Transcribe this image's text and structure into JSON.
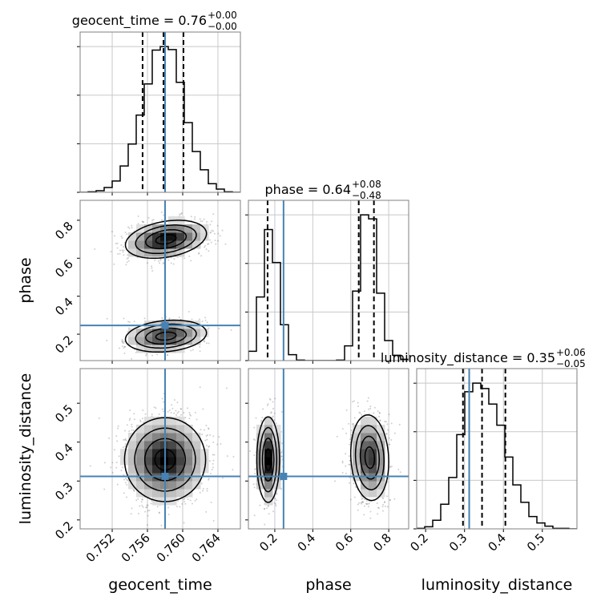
{
  "chart_data": {
    "type": "corner",
    "truth_color": "#4682b4",
    "contour_levels_sigma": [
      0.5,
      1,
      1.5,
      2
    ],
    "parameters": [
      {
        "name": "geocent_time",
        "label": "geocent_time",
        "range": [
          0.74836,
          0.76655
        ],
        "ticks": [
          0.752,
          0.756,
          0.76,
          0.764
        ],
        "tick_labels": [
          "0.752",
          "0.756",
          "0.760",
          "0.764"
        ],
        "truth": 0.758,
        "quantiles": [
          0.75545,
          0.75782,
          0.76009
        ],
        "hist_values": [
          0,
          2,
          6,
          18,
          42,
          98,
          180,
          288,
          404,
          530,
          543,
          532,
          410,
          260,
          152,
          84,
          32,
          12,
          2,
          0
        ],
        "title": {
          "text": "geocent_time = 0.76",
          "plus": "+0.00",
          "minus": "−0.00"
        }
      },
      {
        "name": "phase",
        "label": "phase",
        "range": [
          0.061,
          0.905
        ],
        "ticks": [
          0.2,
          0.4,
          0.6,
          0.8
        ],
        "tick_labels": [
          "0.2",
          "0.4",
          "0.6",
          "0.8"
        ],
        "truth": 0.246,
        "quantiles": [
          0.162,
          0.642,
          0.722
        ],
        "hist_values": [
          35,
          238,
          490,
          367,
          134,
          22,
          2,
          0,
          0,
          0,
          0,
          2,
          55,
          260,
          545,
          530,
          252,
          75,
          20,
          5
        ],
        "title": {
          "text": "phase = 0.64",
          "plus": "+0.08",
          "minus": "−0.48"
        }
      },
      {
        "name": "luminosity_distance",
        "label": "luminosity_distance",
        "range": [
          0.177,
          0.589
        ],
        "ticks": [
          0.2,
          0.3,
          0.4,
          0.5
        ],
        "tick_labels": [
          "0.2",
          "0.3",
          "0.4",
          "0.5"
        ],
        "truth": 0.312,
        "quantiles": [
          0.296,
          0.345,
          0.405
        ],
        "hist_values": [
          2,
          8,
          32,
          92,
          192,
          352,
          512,
          544,
          524,
          466,
          387,
          268,
          164,
          99,
          46,
          22,
          10,
          2,
          2,
          0
        ],
        "title": {
          "text": "luminosity_distance = 0.35",
          "plus": "+0.06",
          "minus": "−0.05"
        }
      }
    ],
    "pairs": [
      {
        "x": 0,
        "y": 1,
        "components": [
          {
            "weight": 0.58,
            "mean": [
              0.7581,
              0.7
            ],
            "sigma": [
              0.0023,
              0.05
            ],
            "rho": 0.3
          },
          {
            "weight": 0.42,
            "mean": [
              0.7581,
              0.19
            ],
            "sigma": [
              0.0023,
              0.042
            ],
            "rho": 0.2
          }
        ]
      },
      {
        "x": 0,
        "y": 2,
        "components": [
          {
            "weight": 1.0,
            "mean": [
              0.758,
              0.355
            ],
            "sigma": [
              0.0023,
              0.054
            ],
            "rho": 0.0
          }
        ]
      },
      {
        "x": 1,
        "y": 2,
        "components": [
          {
            "weight": 0.42,
            "mean": [
              0.165,
              0.355
            ],
            "sigma": [
              0.03,
              0.055
            ],
            "rho": 0.0
          },
          {
            "weight": 0.58,
            "mean": [
              0.7,
              0.36
            ],
            "sigma": [
              0.05,
              0.055
            ],
            "rho": -0.1
          }
        ]
      }
    ]
  }
}
